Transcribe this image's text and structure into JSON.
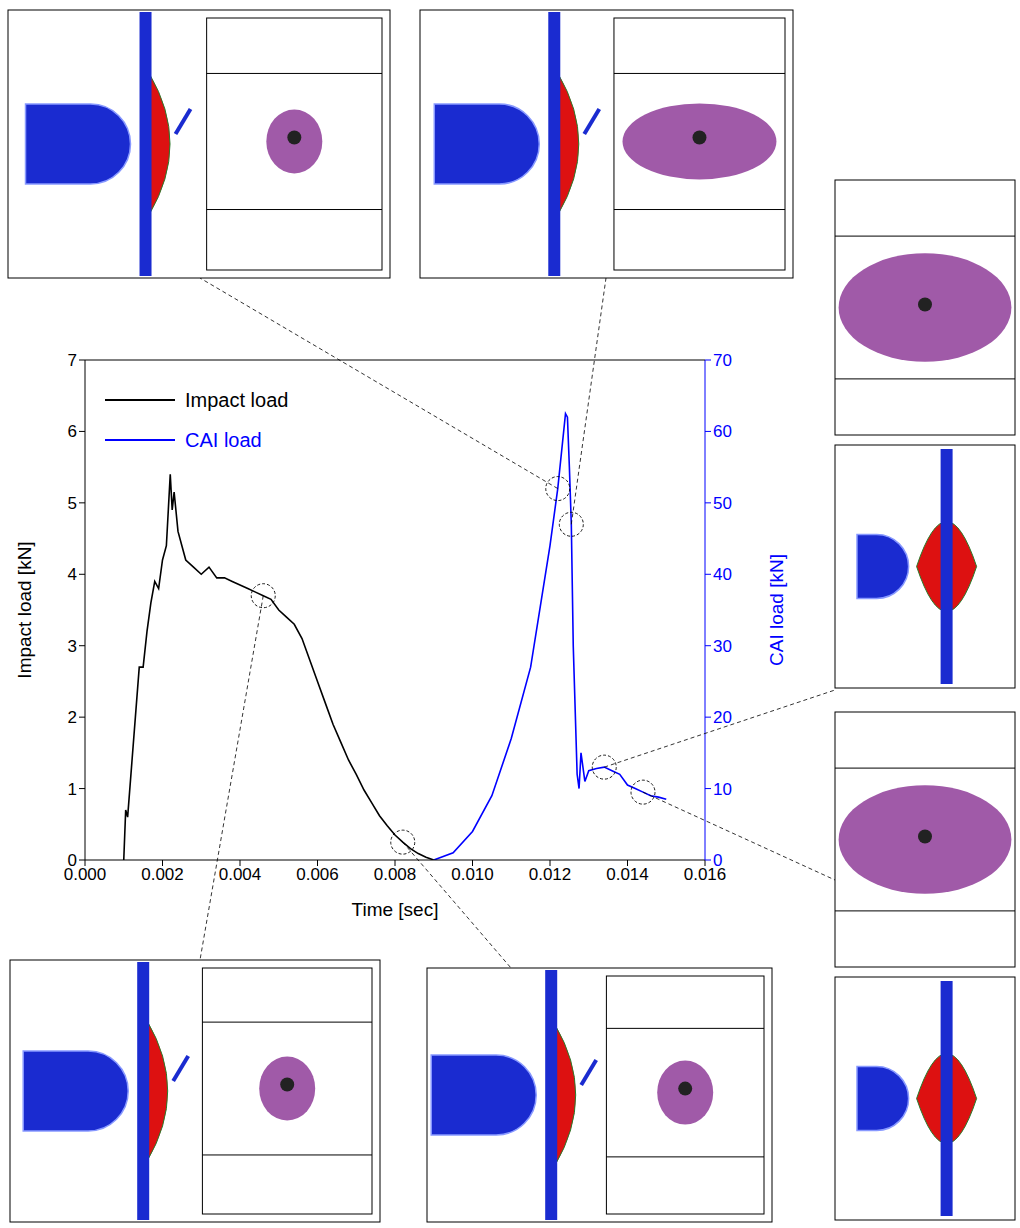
{
  "chart_data": {
    "type": "line",
    "xlabel": "Time [sec]",
    "ylabel": "Impact load [kN]",
    "y2label": "CAI load [kN]",
    "xlim": [
      0,
      0.016
    ],
    "xticks": [
      {
        "value": 0,
        "label": "0.000"
      },
      {
        "value": 0.002,
        "label": "0.002"
      },
      {
        "value": 0.004,
        "label": "0.004"
      },
      {
        "value": 0.006,
        "label": "0.006"
      },
      {
        "value": 0.008,
        "label": "0.008"
      },
      {
        "value": 0.01,
        "label": "0.010"
      },
      {
        "value": 0.012,
        "label": "0.012"
      },
      {
        "value": 0.014,
        "label": "0.014"
      },
      {
        "value": 0.016,
        "label": "0.016"
      }
    ],
    "ylim": [
      0,
      7
    ],
    "yticks": [
      0,
      1,
      2,
      3,
      4,
      5,
      6,
      7
    ],
    "y2lim": [
      0,
      70
    ],
    "y2ticks": [
      0,
      10,
      20,
      30,
      40,
      50,
      60,
      70
    ],
    "legend": "upper left",
    "series": [
      {
        "name": "Impact load",
        "color": "#000000",
        "x": [
          0.001,
          0.00105,
          0.0011,
          0.0012,
          0.0013,
          0.0014,
          0.0015,
          0.0016,
          0.0017,
          0.0018,
          0.0019,
          0.002,
          0.0021,
          0.0022,
          0.00225,
          0.0023,
          0.0024,
          0.0025,
          0.0026,
          0.0028,
          0.003,
          0.0032,
          0.0034,
          0.0036,
          0.0038,
          0.004,
          0.0042,
          0.0044,
          0.0046,
          0.0048,
          0.005,
          0.0052,
          0.0054,
          0.0056,
          0.0058,
          0.006,
          0.0062,
          0.0064,
          0.0066,
          0.0068,
          0.007,
          0.0072,
          0.0074,
          0.0076,
          0.0078,
          0.008,
          0.0082,
          0.0084,
          0.0086,
          0.0088,
          0.009
        ],
        "values": [
          0,
          0.7,
          0.6,
          1.3,
          2.0,
          2.7,
          2.7,
          3.2,
          3.6,
          3.9,
          3.8,
          4.2,
          4.4,
          5.4,
          4.9,
          5.15,
          4.6,
          4.4,
          4.2,
          4.1,
          4.0,
          4.1,
          3.95,
          3.95,
          3.9,
          3.85,
          3.8,
          3.75,
          3.7,
          3.65,
          3.5,
          3.4,
          3.3,
          3.1,
          2.8,
          2.5,
          2.2,
          1.9,
          1.65,
          1.4,
          1.2,
          0.98,
          0.8,
          0.62,
          0.48,
          0.35,
          0.25,
          0.16,
          0.09,
          0.04,
          0
        ]
      },
      {
        "name": "CAI load",
        "color": "#0000ff",
        "axis": "y2",
        "x": [
          0.009,
          0.0095,
          0.01,
          0.0105,
          0.011,
          0.0115,
          0.012,
          0.0122,
          0.0124,
          0.01245,
          0.0125,
          0.01255,
          0.0126,
          0.0127,
          0.01275,
          0.0128,
          0.0129,
          0.013,
          0.0132,
          0.0134,
          0.0136,
          0.0138,
          0.014,
          0.0142,
          0.0144,
          0.0146,
          0.0148,
          0.015
        ],
        "values": [
          0,
          1,
          4,
          9,
          17,
          27,
          44,
          52,
          62.5,
          62,
          55,
          47,
          30,
          12,
          10,
          15,
          11,
          12.5,
          12.8,
          13,
          12.5,
          12,
          10.5,
          10,
          9.5,
          9,
          8.8,
          8.5
        ]
      }
    ]
  }
}
